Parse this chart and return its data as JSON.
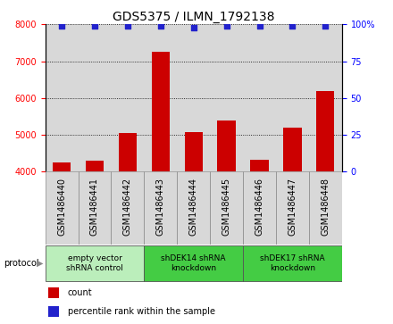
{
  "title": "GDS5375 / ILMN_1792138",
  "categories": [
    "GSM1486440",
    "GSM1486441",
    "GSM1486442",
    "GSM1486443",
    "GSM1486444",
    "GSM1486445",
    "GSM1486446",
    "GSM1486447",
    "GSM1486448"
  ],
  "bar_values": [
    4250,
    4310,
    5050,
    7250,
    5080,
    5380,
    4330,
    5200,
    6200
  ],
  "percentile_values": [
    99,
    99,
    99,
    99,
    98,
    99,
    99,
    99,
    99
  ],
  "ylim_left": [
    4000,
    8000
  ],
  "ylim_right": [
    0,
    100
  ],
  "yticks_left": [
    4000,
    5000,
    6000,
    7000,
    8000
  ],
  "yticks_right": [
    0,
    25,
    50,
    75,
    100
  ],
  "bar_color": "#cc0000",
  "dot_color": "#2222cc",
  "col_bg": "#d8d8d8",
  "protocol_groups": [
    {
      "label": "empty vector\nshRNA control",
      "start": 0,
      "end": 3,
      "color": "#bbeebb"
    },
    {
      "label": "shDEK14 shRNA\nknockdown",
      "start": 3,
      "end": 6,
      "color": "#44cc44"
    },
    {
      "label": "shDEK17 shRNA\nknockdown",
      "start": 6,
      "end": 9,
      "color": "#44cc44"
    }
  ],
  "legend_count_label": "count",
  "legend_pct_label": "percentile rank within the sample",
  "protocol_label": "protocol",
  "title_fontsize": 10,
  "tick_fontsize": 7,
  "label_fontsize": 7,
  "proto_fontsize": 6.5
}
